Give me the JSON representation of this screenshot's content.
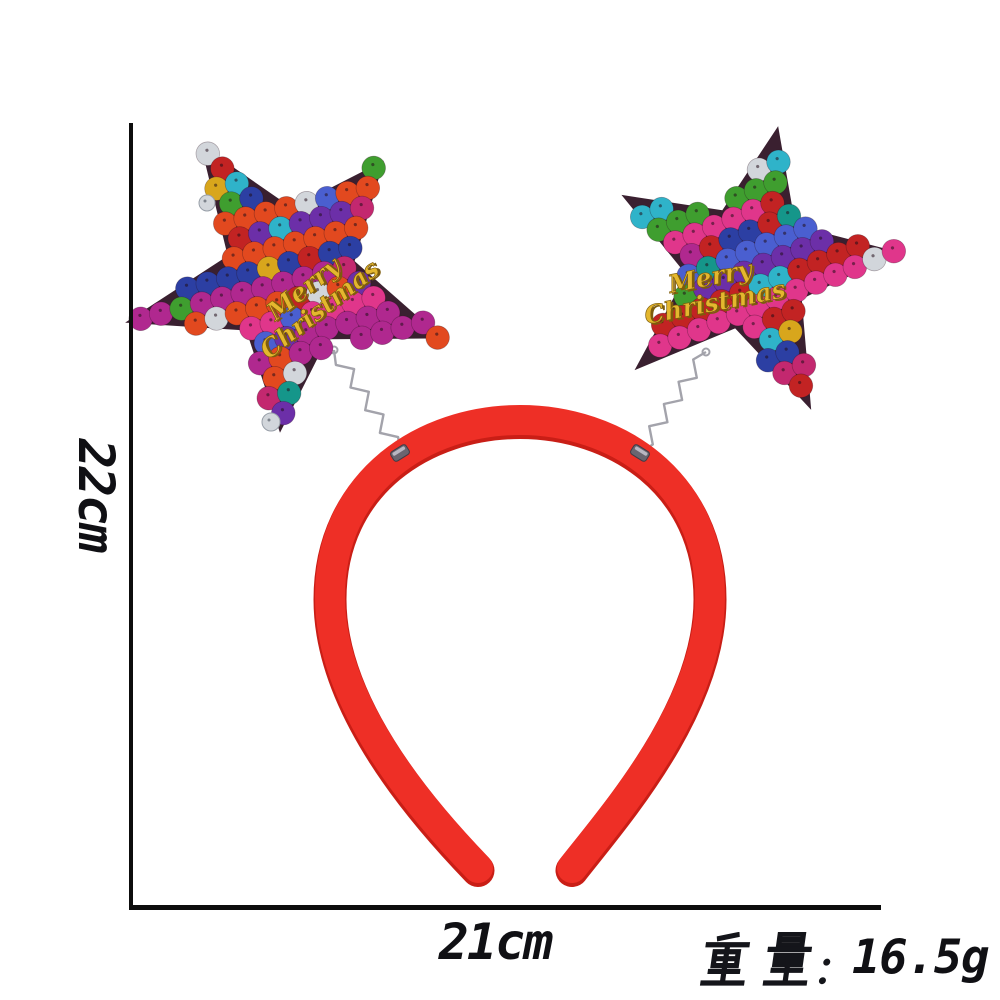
{
  "image": {
    "background": "#ffffff",
    "annotations": {
      "height_label": "22cm",
      "width_label": "21cm",
      "weight_label": "重量：16.5g",
      "weight_prefix": "重量：",
      "weight_value": "16.5g",
      "line_color": "#0d0d0d"
    },
    "product": {
      "ornament": {
        "line1": "Merry",
        "line2": "Christmas",
        "gold": "#e4b72e",
        "gold_shadow": "#7d5c0c"
      },
      "headband_color": "#ee2f26",
      "headband_shadow": "#c91e16",
      "spring_color": "#a3a3ab",
      "star_backing": "#3a2030",
      "silver": "#d2d6db",
      "sequin_palette": [
        "#c3286f",
        "#e0368b",
        "#2c3fa3",
        "#4a5fd0",
        "#c22323",
        "#d8a61c",
        "#15968a",
        "#3f9e2f",
        "#6c2fa8",
        "#e2491f",
        "#2fb3c9",
        "#b0288f",
        "#e8d24a",
        "#d2d6db"
      ]
    }
  }
}
